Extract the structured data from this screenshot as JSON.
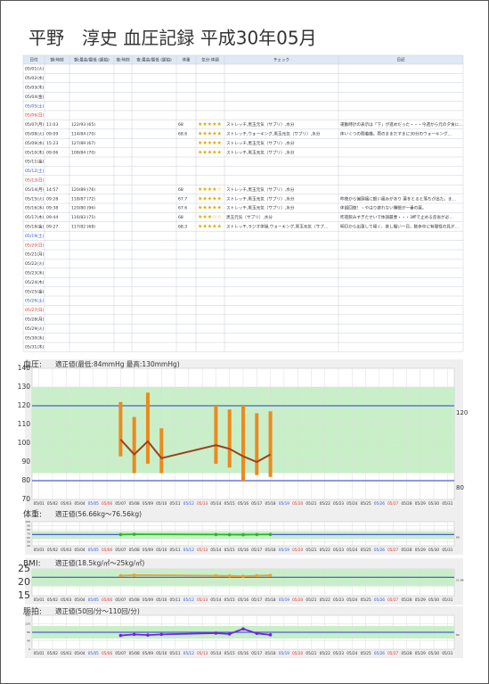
{
  "header": {
    "title": "平野　淳史 血圧記録 平成30年05月"
  },
  "table": {
    "columns": [
      "日付",
      "朝:時刻",
      "朝:最高/最低 (脈拍)",
      "夜:時刻",
      "夜:最高/最低 (脈拍)",
      "体重",
      "気分·体調",
      "チェック",
      "日記"
    ],
    "rows": [
      [
        "05/01(火)",
        null,
        null,
        null,
        null,
        null,
        null,
        null,
        null
      ],
      [
        "05/02(水)",
        null,
        null,
        null,
        null,
        null,
        null,
        null,
        null
      ],
      [
        "05/03(木)",
        null,
        null,
        null,
        null,
        null,
        null,
        null,
        null
      ],
      [
        "05/04(金)",
        null,
        null,
        null,
        null,
        null,
        null,
        null,
        null
      ],
      [
        "05/05(土)",
        null,
        null,
        null,
        null,
        null,
        null,
        null,
        null
      ],
      [
        "05/06(日)",
        null,
        null,
        null,
        null,
        null,
        null,
        null,
        null
      ],
      [
        "05/07(月)",
        "11:03",
        "122/93 (65)",
        null,
        null,
        "68",
        "★★★★★",
        "ストレッチ,黒玉元気（サプリ）,水分",
        "運動時計の表示は「下」が進めだった・・・今週から元の夕食に…"
      ],
      [
        "05/08(火)",
        "09:09",
        "114/84 (70)",
        null,
        null,
        "68.6",
        "★★★★★",
        "ストレッチ,ウォーキング,黒玉元気（サプリ）,水分",
        "体いくつの間着機。雨のままだすまに30分のウォーキング…"
      ],
      [
        "05/09(水)",
        "15:23",
        "127/89 (67)",
        null,
        null,
        null,
        "★★★★★",
        "ストレッチ,黒玉元気（サプリ）,水分",
        null
      ],
      [
        "05/10(木)",
        "09:06",
        "108/84 (70)",
        null,
        null,
        null,
        "★★★★★",
        "ストレッチ,黒玉元気（サプリ）,水分",
        null
      ],
      [
        "05/11(金)",
        null,
        null,
        null,
        null,
        null,
        null,
        null,
        null
      ],
      [
        "05/12(土)",
        null,
        null,
        null,
        null,
        null,
        null,
        null,
        null
      ],
      [
        "05/13(日)",
        null,
        null,
        null,
        null,
        null,
        null,
        null,
        null
      ],
      [
        "05/14(月)",
        "14:57",
        "120/89 (76)",
        null,
        null,
        "68",
        "★★★★☆",
        "ストレッチ,黒玉元気（サプリ）,水分",
        null
      ],
      [
        "05/15(火)",
        "09:28",
        "118/87 (72)",
        null,
        null,
        "67.7",
        "★★★★★",
        "ストレッチ,黒玉元気（サプリ）,水分",
        "昨夜から偏頭痛に軽い痛みがあり 薬をとると落ちが出た。ま…"
      ],
      [
        "05/16(水)",
        "09:38",
        "120/80 (96)",
        null,
        null,
        "67.6",
        "★★★★★",
        "ストレッチ,黒玉元気（サプリ）,水分",
        "体調回復！・やはり疲れない睡眠が一番の薬。"
      ],
      [
        "05/17(木)",
        "09:44",
        "116/83 (75)",
        null,
        null,
        "68",
        "★★★☆☆",
        "黒玉元気（サプリ）,水分",
        "昨夜飲みすぎたせいで体調最悪・・・3杯で止める反省が必…"
      ],
      [
        "05/18(金)",
        "09:27",
        "117/82 (68)",
        null,
        null,
        "68.3",
        "★★★★★",
        "ストレッチ,ラジオ体操,ウォーキング,黒玉元気（サプ…",
        "明日から出張して帰く、楽し騒い一日。数歩中に有理性の見が…"
      ],
      [
        "05/19(土)",
        null,
        null,
        null,
        null,
        null,
        null,
        null,
        null
      ],
      [
        "05/20(日)",
        null,
        null,
        null,
        null,
        null,
        null,
        null,
        null
      ],
      [
        "05/21(月)",
        null,
        null,
        null,
        null,
        null,
        null,
        null,
        null
      ],
      [
        "05/22(火)",
        null,
        null,
        null,
        null,
        null,
        null,
        null,
        null
      ],
      [
        "05/23(水)",
        null,
        null,
        null,
        null,
        null,
        null,
        null,
        null
      ],
      [
        "05/24(木)",
        null,
        null,
        null,
        null,
        null,
        null,
        null,
        null
      ],
      [
        "05/25(金)",
        null,
        null,
        null,
        null,
        null,
        null,
        null,
        null
      ],
      [
        "05/26(土)",
        null,
        null,
        null,
        null,
        null,
        null,
        null,
        null
      ],
      [
        "05/27(日)",
        null,
        null,
        null,
        null,
        null,
        null,
        null,
        null
      ],
      [
        "05/28(月)",
        null,
        null,
        null,
        null,
        null,
        null,
        null,
        null
      ],
      [
        "05/29(火)",
        null,
        null,
        null,
        null,
        null,
        null,
        null,
        null
      ],
      [
        "05/30(水)",
        null,
        null,
        null,
        null,
        null,
        null,
        null,
        null
      ],
      [
        "05/31(木)",
        null,
        null,
        null,
        null,
        null,
        null,
        null,
        null
      ]
    ],
    "date_colors": [
      "#333",
      "#333",
      "#333",
      "#333",
      "#3355cc",
      "#dd3333",
      "#333",
      "#333",
      "#333",
      "#333",
      "#333",
      "#3355cc",
      "#dd3333",
      "#333",
      "#333",
      "#333",
      "#333",
      "#333",
      "#3355cc",
      "#dd3333",
      "#333",
      "#333",
      "#333",
      "#333",
      "#333",
      "#3355cc",
      "#dd3333",
      "#333",
      "#333",
      "#333",
      "#333"
    ],
    "star_color": "#e0a800"
  },
  "chart_data": [
    {
      "type": "bar",
      "label": "血圧:",
      "note": "適正値(最低:84mmHg 最高:130mmHg)",
      "categories": [
        "05/01",
        "05/02",
        "05/03",
        "05/04",
        "05/05",
        "05/06",
        "05/07",
        "05/08",
        "05/09",
        "05/10",
        "05/11",
        "05/12",
        "05/13",
        "05/14",
        "05/15",
        "05/16",
        "05/17",
        "05/18",
        "05/19",
        "05/20",
        "05/21",
        "05/22",
        "05/23",
        "05/24",
        "05/25",
        "05/26",
        "05/27",
        "05/28",
        "05/29",
        "05/30",
        "05/31"
      ],
      "category_colors": [
        "#333",
        "#333",
        "#333",
        "#333",
        "#3355cc",
        "#dd3333",
        "#333",
        "#333",
        "#333",
        "#333",
        "#333",
        "#3355cc",
        "#dd3333",
        "#333",
        "#333",
        "#333",
        "#333",
        "#333",
        "#3355cc",
        "#dd3333",
        "#333",
        "#333",
        "#333",
        "#333",
        "#333",
        "#3355cc",
        "#dd3333",
        "#333",
        "#333",
        "#333",
        "#333"
      ],
      "x": [
        "05/07",
        "05/08",
        "05/09",
        "05/10",
        "05/14",
        "05/15",
        "05/16",
        "05/17",
        "05/18"
      ],
      "high": [
        122,
        114,
        127,
        108,
        120,
        118,
        120,
        116,
        117
      ],
      "low": [
        93,
        84,
        89,
        84,
        89,
        87,
        80,
        83,
        82
      ],
      "line": [
        102,
        94,
        101,
        92,
        99,
        97,
        93,
        90,
        94
      ],
      "bar_color": "#ec8a1e",
      "line_color": "#a0401c",
      "ylim": [
        70,
        140
      ],
      "yticks": [
        70,
        80,
        90,
        100,
        110,
        120,
        130,
        140
      ],
      "band": [
        84,
        130
      ],
      "band_color": "#c8efc8",
      "ref_lines": [
        120,
        80
      ],
      "ref_color": "#4a5fd8"
    },
    {
      "type": "line",
      "label": "体重:",
      "note": "適正値(56.66kg～76.56kg)",
      "x": [
        "05/07",
        "05/08",
        "05/14",
        "05/15",
        "05/16",
        "05/17",
        "05/18"
      ],
      "values": [
        68,
        68.6,
        68,
        67.7,
        67.6,
        68,
        68.3
      ],
      "color": "#22bb22",
      "ylim": [
        40,
        100
      ],
      "yticks": [
        40,
        50,
        60,
        70,
        80,
        90,
        100
      ],
      "band": [
        56.66,
        76.56
      ],
      "band_color": "#c8efc8",
      "ref_lines": [
        68
      ],
      "ref_color": "#4a5fd8"
    },
    {
      "type": "line",
      "label": "BMI:",
      "note": "適正値(18.5kg/㎡～25kg/㎡)",
      "x": [
        "05/07",
        "05/08",
        "05/14",
        "05/15",
        "05/16",
        "05/17",
        "05/18"
      ],
      "values": [
        22.5,
        22.7,
        22.5,
        22.4,
        22.3,
        22.5,
        22.6
      ],
      "color": "#f0a030",
      "ylim": [
        15,
        25
      ],
      "yticks": [
        15,
        20,
        25
      ],
      "band": [
        18.5,
        25
      ],
      "band_color": "#c8efc8",
      "ref_lines": [
        21.88
      ],
      "ref_color": "#4a5fd8"
    },
    {
      "type": "line",
      "label": "脈拍:",
      "note": "適正値(50回/分～110回/分)",
      "x": [
        "05/07",
        "05/08",
        "05/09",
        "05/10",
        "05/14",
        "05/15",
        "05/16",
        "05/17",
        "05/18"
      ],
      "values": [
        65,
        70,
        67,
        70,
        76,
        72,
        96,
        75,
        68
      ],
      "color": "#7722dd",
      "ylim": [
        0,
        160
      ],
      "yticks": [
        0,
        40,
        80,
        120,
        160
      ],
      "band": [
        50,
        110
      ],
      "band_color": "#c8efc8",
      "ref_lines": [
        80
      ],
      "ref_color": "#4a5fd8"
    }
  ]
}
